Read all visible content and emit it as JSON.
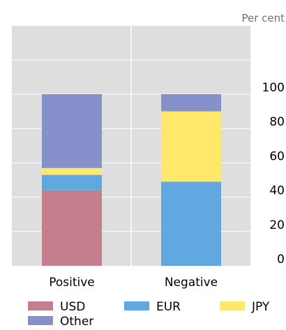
{
  "chart_data": {
    "type": "bar",
    "stacked": true,
    "unit_label": "Per cent",
    "categories": [
      "Positive",
      "Negative"
    ],
    "series": [
      {
        "name": "USD",
        "color": "#c47f8f",
        "values": [
          44,
          0
        ]
      },
      {
        "name": "EUR",
        "color": "#62a8e0",
        "values": [
          9,
          49
        ]
      },
      {
        "name": "JPY",
        "color": "#ffe86a",
        "values": [
          4,
          41
        ]
      },
      {
        "name": "Other",
        "color": "#8691cc",
        "values": [
          43,
          10
        ]
      }
    ],
    "ylim": [
      0,
      100
    ],
    "yticks": [
      0,
      20,
      40,
      60,
      80,
      100
    ],
    "grid": true,
    "legend_position": "bottom",
    "background_color": "#dedede",
    "grid_color": "#ffffff"
  }
}
